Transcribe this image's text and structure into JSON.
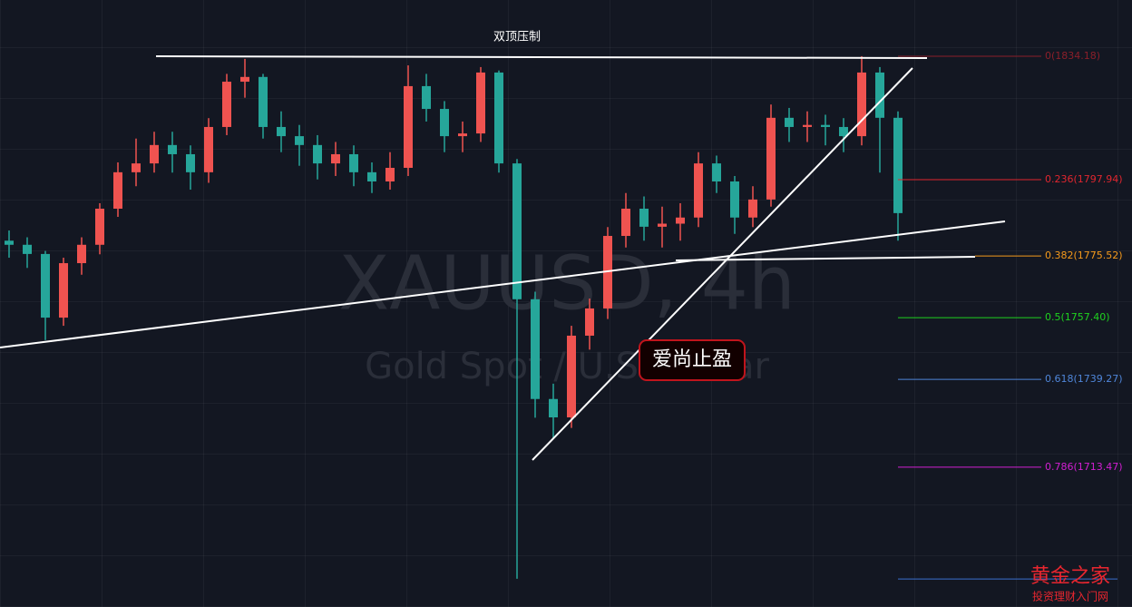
{
  "chart_data": {
    "type": "candlestick",
    "title": "双顶压制",
    "annotation": "爱尚止盈",
    "watermark": "XAUUSD, 4h",
    "watermark_sub": "Gold Spot / U.S. Dollar",
    "brand": "黄金之家",
    "brand_sub": "投资理财入门网",
    "ylim": [
      1672.4,
      1850.7
    ],
    "up_color": "#ef5350",
    "down_color": "#26a69a",
    "open": [
      1780,
      1778.8,
      1776.1,
      1757.4,
      1773.4,
      1778.8,
      1789.4,
      1800.1,
      1802.7,
      1808.1,
      1805.4,
      1800.1,
      1813.4,
      1826.7,
      1828.1,
      1813.4,
      1810.7,
      1808.1,
      1802.7,
      1805.4,
      1800.1,
      1797.4,
      1801.4,
      1825.4,
      1818.7,
      1810.7,
      1811.5,
      1829.4,
      1802.7,
      1762.8,
      1733.5,
      1728.1,
      1752.1,
      1760.1,
      1781.4,
      1789.4,
      1784.1,
      1785,
      1786.8,
      1802.7,
      1797.4,
      1786.8,
      1792.1,
      1816.1,
      1813.4,
      1814,
      1813.4,
      1810.7,
      1829.4,
      1816.1
    ],
    "high": [
      1783,
      1781,
      1777,
      1775,
      1781,
      1791,
      1803,
      1810,
      1812,
      1812,
      1808,
      1816,
      1829,
      1833.4,
      1829,
      1818,
      1814,
      1811,
      1809,
      1808,
      1803,
      1806,
      1831.5,
      1829,
      1821,
      1815,
      1831,
      1830,
      1804,
      1765,
      1738,
      1755,
      1763,
      1784,
      1794,
      1793,
      1790,
      1791,
      1806,
      1805,
      1799,
      1796,
      1820,
      1819,
      1818,
      1817,
      1816,
      1834.2,
      1831,
      1818
    ],
    "low": [
      1775,
      1772,
      1750.8,
      1755,
      1770,
      1776,
      1787,
      1796,
      1800,
      1800,
      1795,
      1797,
      1811,
      1822,
      1810,
      1806,
      1802,
      1798,
      1799,
      1796,
      1794,
      1795,
      1799,
      1815,
      1806,
      1806,
      1809,
      1800,
      1680.7,
      1728,
      1722,
      1725,
      1748,
      1757,
      1778,
      1780,
      1778,
      1780,
      1784,
      1794,
      1782,
      1784,
      1790,
      1809,
      1809,
      1808,
      1806,
      1808,
      1800,
      1780
    ],
    "close": [
      1778.8,
      1776.1,
      1757.4,
      1773.4,
      1778.8,
      1789.4,
      1800.1,
      1802.7,
      1808.1,
      1805.4,
      1800.1,
      1813.4,
      1826.7,
      1828.1,
      1813.4,
      1810.7,
      1808.1,
      1802.7,
      1805.4,
      1800.1,
      1797.4,
      1801.4,
      1825.4,
      1818.7,
      1810.7,
      1811.5,
      1829.4,
      1802.7,
      1762.8,
      1733.5,
      1728.1,
      1752.1,
      1760.1,
      1781.4,
      1789.4,
      1784.1,
      1785,
      1786.8,
      1802.7,
      1797.4,
      1786.8,
      1792.1,
      1816.1,
      1813.4,
      1814,
      1813.4,
      1810.7,
      1829.4,
      1816.1,
      1788.1
    ],
    "fib_levels": [
      {
        "label": "0(1834.18)",
        "value": 1834.18,
        "color": "#8b1f2a"
      },
      {
        "label": "0.236(1797.94)",
        "value": 1797.94,
        "color": "#e0262f"
      },
      {
        "label": "0.382(1775.52)",
        "value": 1775.52,
        "color": "#f59a1b"
      },
      {
        "label": "0.5(1757.40)",
        "value": 1757.4,
        "color": "#1fd21f"
      },
      {
        "label": "0.618(1739.27)",
        "value": 1739.27,
        "color": "#4f86d9"
      },
      {
        "label": "0.786(1713.47)",
        "value": 1713.47,
        "color": "#d21fd2"
      },
      {
        "value": 1680.62,
        "color": "#3a6fd0"
      }
    ]
  }
}
